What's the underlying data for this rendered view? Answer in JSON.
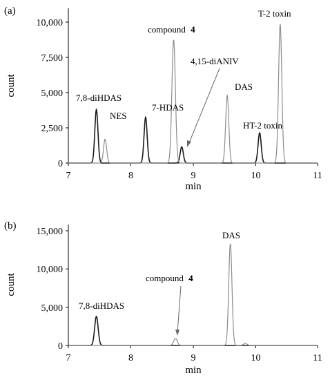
{
  "chart_data": [
    {
      "type": "line",
      "panel_label": "(a)",
      "xlabel": "min",
      "ylabel": "count",
      "xlim": [
        7,
        11
      ],
      "ylim": [
        0,
        10000
      ],
      "x_ticks": [
        7,
        8,
        9,
        10,
        11
      ],
      "x_tick_labels": [
        "7",
        "8",
        "9",
        "10",
        "11"
      ],
      "y_ticks": [
        0,
        2500,
        5000,
        7500,
        10000
      ],
      "y_tick_labels": [
        "0",
        "2,500",
        "5,000",
        "7,500",
        "10,000"
      ],
      "grid": false,
      "colors": {
        "dark": "#1a1a1a",
        "gray": "#8c8c8c"
      },
      "peaks": [
        {
          "label": "7,8-diHDAS",
          "x": 7.45,
          "height": 3800,
          "width": 0.025,
          "color": "dark"
        },
        {
          "label": "NES",
          "x": 7.59,
          "height": 1700,
          "width": 0.025,
          "color": "gray"
        },
        {
          "label": "7-HDAS",
          "x": 8.24,
          "height": 3250,
          "width": 0.025,
          "color": "dark"
        },
        {
          "label": "compound",
          "label_bold": "4",
          "x": 8.69,
          "height": 8750,
          "width": 0.028,
          "color": "gray"
        },
        {
          "label": "4,15-diANIV",
          "x": 8.82,
          "height": 1150,
          "width": 0.025,
          "color": "dark"
        },
        {
          "label": "DAS",
          "x": 9.55,
          "height": 4800,
          "width": 0.025,
          "color": "gray"
        },
        {
          "label": "HT-2 toxin",
          "x": 10.07,
          "height": 2150,
          "width": 0.025,
          "color": "dark"
        },
        {
          "label": "T-2 toxin",
          "x": 10.4,
          "height": 9850,
          "width": 0.026,
          "color": "gray"
        }
      ]
    },
    {
      "type": "line",
      "panel_label": "(b)",
      "xlabel": "min",
      "ylabel": "count",
      "xlim": [
        7,
        11
      ],
      "ylim": [
        0,
        15000
      ],
      "x_ticks": [
        7,
        8,
        9,
        10,
        11
      ],
      "x_tick_labels": [
        "7",
        "8",
        "9",
        "10",
        "11"
      ],
      "y_ticks": [
        0,
        5000,
        10000,
        15000
      ],
      "y_tick_labels": [
        "0",
        "5,000",
        "10,000",
        "15,000"
      ],
      "grid": false,
      "colors": {
        "dark": "#1a1a1a",
        "gray": "#8c8c8c"
      },
      "peaks": [
        {
          "label": "7,8-diHDAS",
          "x": 7.45,
          "height": 3800,
          "width": 0.028,
          "color": "dark"
        },
        {
          "label": "compound",
          "label_bold": "4",
          "x": 8.72,
          "height": 900,
          "width": 0.03,
          "color": "gray"
        },
        {
          "label": "DAS",
          "x": 9.6,
          "height": 13300,
          "width": 0.026,
          "color": "gray"
        },
        {
          "label": "",
          "x": 9.84,
          "height": 250,
          "width": 0.03,
          "color": "gray"
        }
      ]
    }
  ]
}
